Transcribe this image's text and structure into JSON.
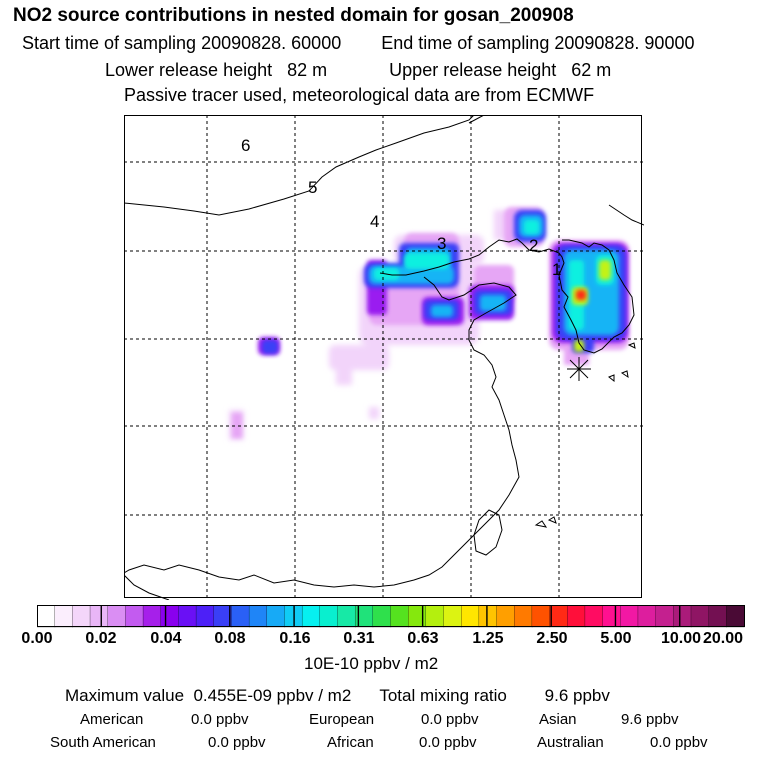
{
  "header": {
    "title": "NO2 source contributions in nested domain for gosan_200908",
    "start_label": "Start time of sampling 20090828. 60000",
    "end_label": "End time of sampling 20090828. 90000",
    "lower_label": "Lower release height   82 m",
    "upper_label": "Upper release height   62 m",
    "tracer_note": "Passive tracer used, meteorological data are from ECMWF"
  },
  "map": {
    "day_labels": [
      "6",
      "5",
      "4",
      "3",
      "2",
      "1"
    ],
    "release_marker": "asterisk-icon"
  },
  "colorbar": {
    "ticks": [
      "0.00",
      "0.02",
      "0.04",
      "0.08",
      "0.16",
      "0.31",
      "0.63",
      "1.25",
      "2.50",
      "5.00",
      "10.00",
      "20.00"
    ],
    "units": "10E-10 ppbv / m2",
    "colors": [
      "#ffffff",
      "#fbeefd",
      "#f4d6fa",
      "#e9b6f7",
      "#da8ef3",
      "#c35bf0",
      "#a620ea",
      "#8a00ee",
      "#6a10f5",
      "#4d20f7",
      "#3a3ff6",
      "#2a60f6",
      "#1f85f7",
      "#17aaf6",
      "#10ccf5",
      "#06f0f0",
      "#09efcf",
      "#17e9a6",
      "#20e27a",
      "#2fe04c",
      "#55e21f",
      "#85e80d",
      "#b4ef0e",
      "#dcf312",
      "#ffe600",
      "#ffc400",
      "#ff9f00",
      "#ff7a00",
      "#ff5200",
      "#ff2a15",
      "#ff0f3a",
      "#ff0c62",
      "#ff1090",
      "#f218a4",
      "#dd1e9e",
      "#c4208f",
      "#aa1b7a",
      "#8f1564",
      "#731052",
      "#4a0a35"
    ]
  },
  "summary": {
    "max_line": "Maximum value  0.455E-09 ppbv / m2      Total mixing ratio        9.6 ppbv",
    "regions": [
      {
        "name": "American",
        "value": "0.0 ppbv"
      },
      {
        "name": "European",
        "value": "0.0 ppbv"
      },
      {
        "name": "Asian",
        "value": "9.6 ppbv"
      },
      {
        "name": "South American",
        "value": "0.0 ppbv"
      },
      {
        "name": "African",
        "value": "0.0 ppbv"
      },
      {
        "name": "Australian",
        "value": "0.0 ppbv"
      }
    ]
  }
}
